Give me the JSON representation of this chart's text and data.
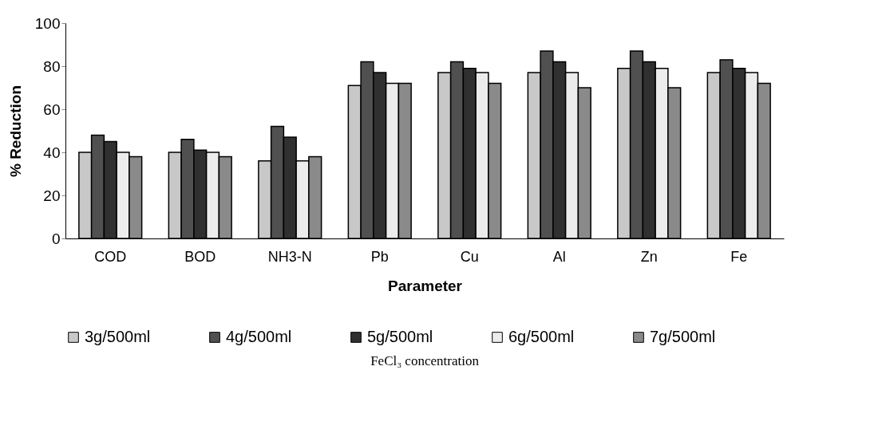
{
  "chart_data": {
    "type": "bar",
    "xlabel": "Parameter",
    "ylabel": "% Reduction",
    "legend_title": "FeCl₃ concentration",
    "categories": [
      "COD",
      "BOD",
      "NH3-N",
      "Pb",
      "Cu",
      "Al",
      "Zn",
      "Fe"
    ],
    "series": [
      {
        "name": "3g/500ml",
        "color": "#c8c8c8",
        "values": [
          40,
          40,
          36,
          71,
          77,
          77,
          79,
          77
        ]
      },
      {
        "name": "4g/500ml",
        "color": "#505050",
        "values": [
          48,
          46,
          52,
          82,
          82,
          87,
          87,
          83
        ]
      },
      {
        "name": "5g/500ml",
        "color": "#303030",
        "values": [
          45,
          41,
          47,
          77,
          79,
          82,
          82,
          79
        ]
      },
      {
        "name": "6g/500ml",
        "color": "#ececec",
        "values": [
          40,
          40,
          36,
          72,
          77,
          77,
          79,
          77
        ]
      },
      {
        "name": "7g/500ml",
        "color": "#8a8a8a",
        "values": [
          38,
          38,
          38,
          72,
          72,
          70,
          70,
          72
        ]
      }
    ],
    "ylim": [
      0,
      100
    ],
    "yticks": [
      0,
      20,
      40,
      60,
      80,
      100
    ],
    "legend": "bottom"
  }
}
